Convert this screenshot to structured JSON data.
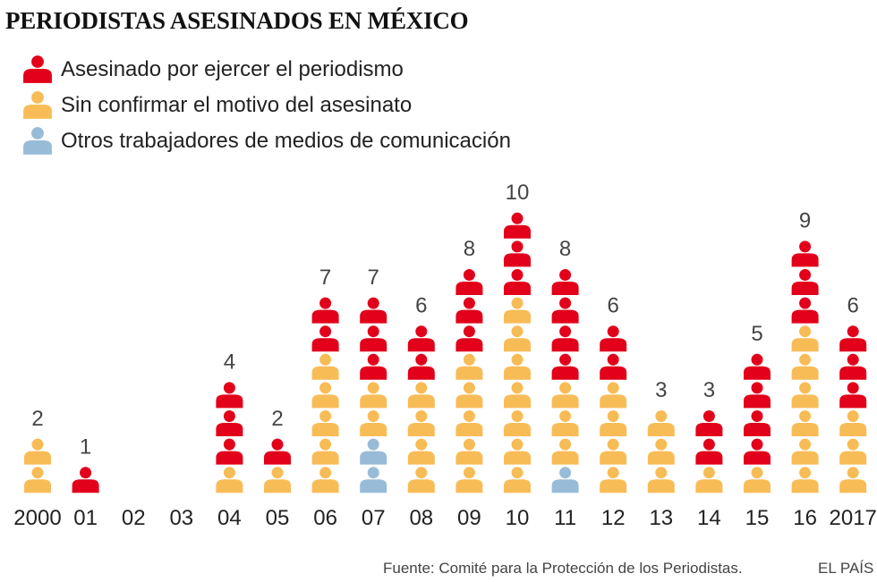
{
  "title": "PERIODISTAS ASESINADOS EN MÉXICO",
  "legend": [
    {
      "key": "red",
      "label": "Asesinado por ejercer el periodismo",
      "color": "#e2001a"
    },
    {
      "key": "yellow",
      "label": "Sin  confirmar el motivo del asesinato",
      "color": "#f8bc57"
    },
    {
      "key": "blue",
      "label": "Otros trabajadores de medios de comunicación",
      "color": "#98bcd8"
    }
  ],
  "chart_data": {
    "type": "bar",
    "title": "PERIODISTAS ASESINADOS EN MÉXICO",
    "xlabel": "",
    "ylabel": "",
    "categories": [
      "2000",
      "01",
      "02",
      "03",
      "04",
      "05",
      "06",
      "07",
      "08",
      "09",
      "10",
      "11",
      "12",
      "13",
      "14",
      "15",
      "16",
      "2017"
    ],
    "series": [
      {
        "name": "Otros trabajadores de medios de comunicación",
        "key": "blue",
        "values": [
          0,
          0,
          0,
          0,
          0,
          0,
          0,
          2,
          0,
          0,
          0,
          1,
          0,
          0,
          0,
          0,
          0,
          0
        ]
      },
      {
        "name": "Sin  confirmar el motivo del asesinato",
        "key": "yellow",
        "values": [
          2,
          0,
          0,
          0,
          1,
          1,
          5,
          2,
          4,
          5,
          7,
          3,
          4,
          3,
          1,
          1,
          6,
          3
        ]
      },
      {
        "name": "Asesinado por ejercer el periodismo",
        "key": "red",
        "values": [
          0,
          1,
          0,
          0,
          3,
          1,
          2,
          3,
          2,
          3,
          3,
          4,
          2,
          0,
          2,
          4,
          3,
          3
        ]
      }
    ],
    "totals": [
      2,
      1,
      0,
      0,
      4,
      2,
      7,
      7,
      6,
      8,
      10,
      8,
      6,
      3,
      3,
      5,
      9,
      6
    ],
    "ylim": [
      0,
      10
    ]
  },
  "footer": {
    "source": "Fuente: Comité para la Protección de los Periodistas.",
    "brand": "EL PAÍS"
  }
}
